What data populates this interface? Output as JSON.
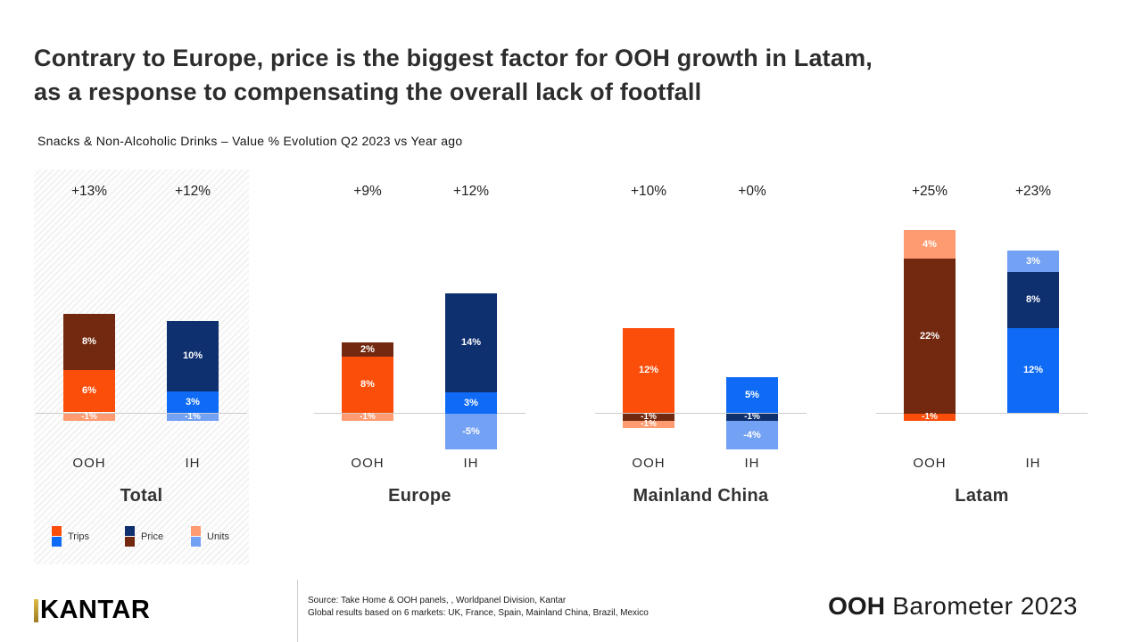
{
  "title": {
    "line1": "Contrary to Europe, price is the biggest factor for OOH growth in Latam,",
    "line2": "as a response to compensating the overall lack of footfall"
  },
  "subtitle": "Snacks & Non-Alcoholic Drinks – Value % Evolution Q2 2023 vs Year ago",
  "footer": {
    "logo": "KANTAR",
    "source_line1": "Source: Take Home & OOH panels, , Worldpanel Division, Kantar",
    "source_line2": "Global results based on 6 markets: UK, France, Spain, Mainland China, Brazil, Mexico",
    "brand_bold": "OOH",
    "brand_rest": " Barometer 2023"
  },
  "colors": {
    "trips_ooh": "#fb4e0b",
    "trips_ih": "#0f6bf5",
    "price_ooh": "#73290f",
    "price_ih": "#0e306f",
    "units_ooh": "#ff9b70",
    "units_ih": "#73a1f3",
    "axis": "#cccccc"
  },
  "chart_data": {
    "type": "bar",
    "stacked": true,
    "unit": "%",
    "title": "Snacks & Non-Alcoholic Drinks – Value % Evolution Q2 2023 vs Year ago",
    "legend_position": "bottom of Total panel",
    "legend": [
      {
        "label": "Trips",
        "swatches": [
          "#fb4e0b",
          "#0f6bf5"
        ]
      },
      {
        "label": "Price",
        "swatches": [
          "#0e306f",
          "#73290f"
        ]
      },
      {
        "label": "Units",
        "swatches": [
          "#ff9b70",
          "#73a1f3"
        ]
      }
    ],
    "groups": [
      {
        "name": "Total",
        "highlighted": true,
        "bars": [
          {
            "label": "OOH",
            "headline": "+13%",
            "segments": [
              {
                "name": "Price",
                "value": 8,
                "color": "#73290f"
              },
              {
                "name": "Trips",
                "value": 6,
                "color": "#fb4e0b"
              },
              {
                "name": "Units",
                "value": -1,
                "color": "#ff9b70"
              }
            ]
          },
          {
            "label": "IH",
            "headline": "+12%",
            "segments": [
              {
                "name": "Price",
                "value": 10,
                "color": "#0e306f"
              },
              {
                "name": "Trips",
                "value": 3,
                "color": "#0f6bf5"
              },
              {
                "name": "Units",
                "value": -1,
                "color": "#73a1f3"
              }
            ]
          }
        ]
      },
      {
        "name": "Europe",
        "highlighted": false,
        "bars": [
          {
            "label": "OOH",
            "headline": "+9%",
            "segments": [
              {
                "name": "Price",
                "value": 2,
                "color": "#73290f"
              },
              {
                "name": "Trips",
                "value": 8,
                "color": "#fb4e0b"
              },
              {
                "name": "Units",
                "value": -1,
                "color": "#ff9b70"
              }
            ]
          },
          {
            "label": "IH",
            "headline": "+12%",
            "segments": [
              {
                "name": "Price",
                "value": 14,
                "color": "#0e306f"
              },
              {
                "name": "Trips",
                "value": 3,
                "color": "#0f6bf5"
              },
              {
                "name": "Units",
                "value": -5,
                "color": "#73a1f3"
              }
            ]
          }
        ]
      },
      {
        "name": "Mainland China",
        "highlighted": false,
        "bars": [
          {
            "label": "OOH",
            "headline": "+10%",
            "segments": [
              {
                "name": "Trips",
                "value": 12,
                "color": "#fb4e0b"
              },
              {
                "name": "Price",
                "value": -1,
                "color": "#73290f"
              },
              {
                "name": "Units",
                "value": -1,
                "color": "#ff9b70"
              }
            ]
          },
          {
            "label": "IH",
            "headline": "+0%",
            "segments": [
              {
                "name": "Trips",
                "value": 5,
                "color": "#0f6bf5"
              },
              {
                "name": "Price",
                "value": -1,
                "color": "#0e306f"
              },
              {
                "name": "Units",
                "value": -4,
                "color": "#73a1f3"
              }
            ]
          }
        ]
      },
      {
        "name": "Latam",
        "highlighted": false,
        "bars": [
          {
            "label": "OOH",
            "headline": "+25%",
            "segments": [
              {
                "name": "Units",
                "value": 4,
                "color": "#ff9b70"
              },
              {
                "name": "Price",
                "value": 22,
                "color": "#73290f"
              },
              {
                "name": "Trips",
                "value": -1,
                "color": "#fb4e0b"
              }
            ]
          },
          {
            "label": "IH",
            "headline": "+23%",
            "segments": [
              {
                "name": "Units",
                "value": 3,
                "color": "#73a1f3"
              },
              {
                "name": "Price",
                "value": 8,
                "color": "#0e306f"
              },
              {
                "name": "Trips",
                "value": 12,
                "color": "#0f6bf5"
              }
            ]
          }
        ]
      }
    ]
  }
}
